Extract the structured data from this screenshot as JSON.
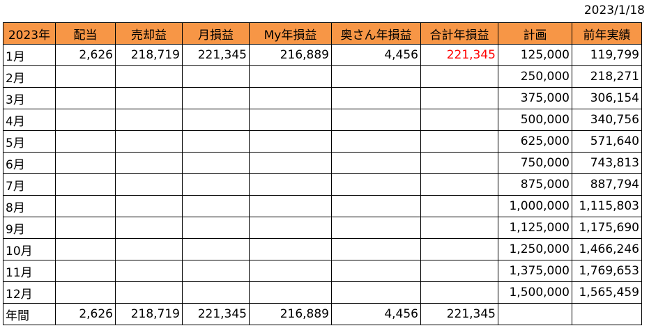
{
  "date": "2023/1/18",
  "colors": {
    "header_bg": "#f79646",
    "highlight_text": "#ff0000",
    "border": "#000000"
  },
  "headers": [
    "2023年",
    "配当",
    "売却益",
    "月損益",
    "My年損益",
    "奥さん年損益",
    "合計年損益",
    "計画",
    "前年実績"
  ],
  "rows": [
    {
      "month": "1月",
      "dividend": "2,626",
      "sale_profit": "218,719",
      "monthly_pl": "221,345",
      "my_annual_pl": "216,889",
      "wife_annual_pl": "4,456",
      "total_annual_pl": "221,345",
      "plan": "125,000",
      "prev_year": "119,799"
    },
    {
      "month": "2月",
      "dividend": "",
      "sale_profit": "",
      "monthly_pl": "",
      "my_annual_pl": "",
      "wife_annual_pl": "",
      "total_annual_pl": "",
      "plan": "250,000",
      "prev_year": "218,271"
    },
    {
      "month": "3月",
      "dividend": "",
      "sale_profit": "",
      "monthly_pl": "",
      "my_annual_pl": "",
      "wife_annual_pl": "",
      "total_annual_pl": "",
      "plan": "375,000",
      "prev_year": "306,154"
    },
    {
      "month": "4月",
      "dividend": "",
      "sale_profit": "",
      "monthly_pl": "",
      "my_annual_pl": "",
      "wife_annual_pl": "",
      "total_annual_pl": "",
      "plan": "500,000",
      "prev_year": "340,756"
    },
    {
      "month": "5月",
      "dividend": "",
      "sale_profit": "",
      "monthly_pl": "",
      "my_annual_pl": "",
      "wife_annual_pl": "",
      "total_annual_pl": "",
      "plan": "625,000",
      "prev_year": "571,640"
    },
    {
      "month": "6月",
      "dividend": "",
      "sale_profit": "",
      "monthly_pl": "",
      "my_annual_pl": "",
      "wife_annual_pl": "",
      "total_annual_pl": "",
      "plan": "750,000",
      "prev_year": "743,813"
    },
    {
      "month": "7月",
      "dividend": "",
      "sale_profit": "",
      "monthly_pl": "",
      "my_annual_pl": "",
      "wife_annual_pl": "",
      "total_annual_pl": "",
      "plan": "875,000",
      "prev_year": "887,794"
    },
    {
      "month": "8月",
      "dividend": "",
      "sale_profit": "",
      "monthly_pl": "",
      "my_annual_pl": "",
      "wife_annual_pl": "",
      "total_annual_pl": "",
      "plan": "1,000,000",
      "prev_year": "1,115,803"
    },
    {
      "month": "9月",
      "dividend": "",
      "sale_profit": "",
      "monthly_pl": "",
      "my_annual_pl": "",
      "wife_annual_pl": "",
      "total_annual_pl": "",
      "plan": "1,125,000",
      "prev_year": "1,175,690"
    },
    {
      "month": "10月",
      "dividend": "",
      "sale_profit": "",
      "monthly_pl": "",
      "my_annual_pl": "",
      "wife_annual_pl": "",
      "total_annual_pl": "",
      "plan": "1,250,000",
      "prev_year": "1,466,246"
    },
    {
      "month": "11月",
      "dividend": "",
      "sale_profit": "",
      "monthly_pl": "",
      "my_annual_pl": "",
      "wife_annual_pl": "",
      "total_annual_pl": "",
      "plan": "1,375,000",
      "prev_year": "1,769,653"
    },
    {
      "month": "12月",
      "dividend": "",
      "sale_profit": "",
      "monthly_pl": "",
      "my_annual_pl": "",
      "wife_annual_pl": "",
      "total_annual_pl": "",
      "plan": "1,500,000",
      "prev_year": "1,565,459"
    }
  ],
  "total_row": {
    "month": "年間",
    "dividend": "2,626",
    "sale_profit": "218,719",
    "monthly_pl": "221,345",
    "my_annual_pl": "216,889",
    "wife_annual_pl": "4,456",
    "total_annual_pl": "221,345",
    "plan": "",
    "prev_year": ""
  }
}
